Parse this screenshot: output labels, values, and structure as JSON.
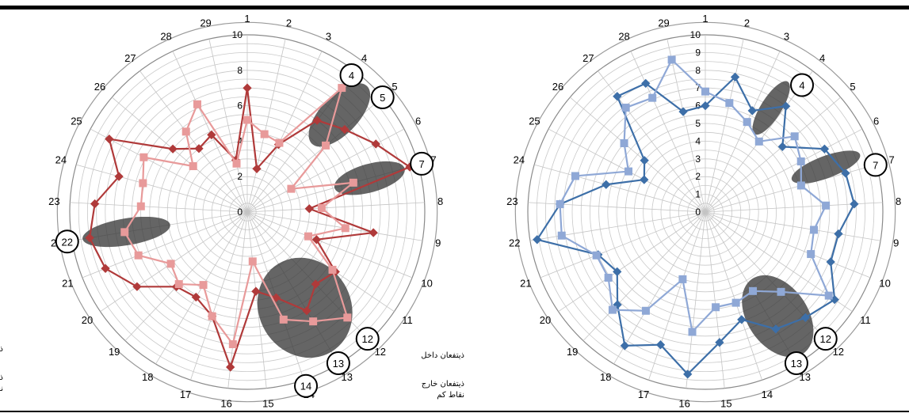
{
  "chart_data": [
    {
      "type": "radar",
      "categories": [
        "1",
        "2",
        "3",
        "4",
        "5",
        "6",
        "7",
        "8",
        "9",
        "10",
        "11",
        "12",
        "13",
        "14",
        "15",
        "16",
        "17",
        "18",
        "19",
        "20",
        "21",
        "22",
        "23",
        "24",
        "25",
        "26",
        "27",
        "28",
        "29"
      ],
      "rlim": [
        0,
        10
      ],
      "tick_labels": [
        "0",
        "2",
        "4",
        "6",
        "8",
        "10"
      ],
      "grid": true,
      "legend": {
        "position": "bottom-left",
        "entries": [
          "ذیتفعان داخل",
          "ذیتفعان خارج",
          "نقاط کم"
        ]
      },
      "series": [
        {
          "color": "#b03a3a",
          "marker": "diamond",
          "values": [
            7,
            2.5,
            4.2,
            6.5,
            7.2,
            8.2,
            9.5,
            3.5,
            7.2,
            4.2,
            6.0,
            5.6,
            6.5,
            5.1,
            4.5,
            8.8,
            6.2,
            5.6,
            5.8,
            7.5,
            8.6,
            9.0,
            8.6,
            7.5,
            8.8,
            5.5,
            4.5,
            4.8,
            3.0
          ]
        },
        {
          "color": "#e89a9a",
          "marker": "square",
          "values": [
            5.2,
            4.5,
            4.3,
            8.8,
            5.8,
            2.8,
            6.2,
            4.2,
            5.6,
            3.7,
            5.8,
            8.2,
            7.2,
            6.4,
            2.8,
            7.5,
            6.2,
            4.8,
            5.6,
            5.2,
            6.6,
            7.0,
            6.0,
            6.1,
            6.6,
            4.0,
            5.7,
            6.7,
            2.8
          ]
        }
      ],
      "annotations": [
        "4",
        "5",
        "7",
        "12",
        "13",
        "14",
        "22"
      ]
    },
    {
      "type": "radar",
      "categories": [
        "1",
        "2",
        "3",
        "4",
        "5",
        "6",
        "7",
        "8",
        "9",
        "10",
        "11",
        "12",
        "13",
        "14",
        "15",
        "16",
        "17",
        "18",
        "19",
        "20",
        "21",
        "22",
        "23",
        "24",
        "25",
        "26",
        "27",
        "28",
        "29"
      ],
      "rlim": [
        0,
        10
      ],
      "tick_labels": [
        "0",
        "1",
        "2",
        "3",
        "4",
        "5",
        "6",
        "7",
        "8",
        "9",
        "10"
      ],
      "grid": true,
      "legend": {
        "position": "bottom-left",
        "entries": [
          "ذیتفعان داخل",
          "ذیتفعان خارج",
          "نقاط کم"
        ]
      },
      "series": [
        {
          "color": "#3d6fa8",
          "marker": "diamond",
          "values": [
            6.0,
            7.8,
            6.3,
            7.5,
            5.7,
            7.6,
            8.2,
            8.4,
            7.6,
            7.6,
            8.8,
            8.2,
            7.7,
            6.4,
            7.4,
            9.2,
            7.9,
            8.8,
            7.2,
            6.0,
            6.5,
            9.6,
            8.2,
            5.8,
            3.9,
            4.5,
            8.2,
            8.0,
            5.8
          ]
        },
        {
          "color": "#8fa8d6",
          "marker": "square",
          "values": [
            6.8,
            6.3,
            5.6,
            5.0,
            6.6,
            6.1,
            5.6,
            6.8,
            6.2,
            6.4,
            8.4,
            6.2,
            5.2,
            5.4,
            5.4,
            6.8,
            4.0,
            6.5,
            7.6,
            6.6,
            6.6,
            8.2,
            8.2,
            7.6,
            4.9,
            6.0,
            7.4,
            7.1,
            8.8
          ]
        }
      ],
      "annotations": [
        "4",
        "7",
        "12",
        "13"
      ]
    }
  ]
}
